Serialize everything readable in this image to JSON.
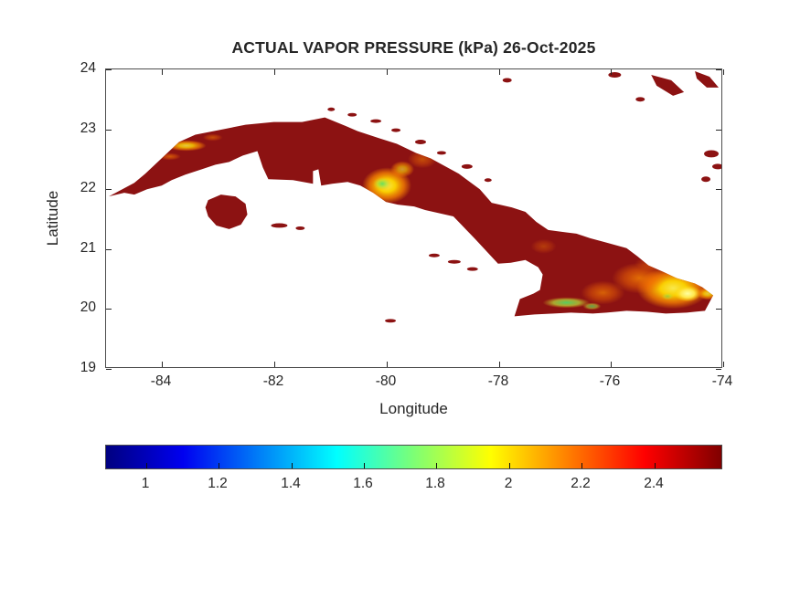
{
  "chart_data": {
    "type": "heatmap",
    "title": "ACTUAL VAPOR PRESSURE (kPa) 26-Oct-2025",
    "xlabel": "Longitude",
    "ylabel": "Latitude",
    "region": "Cuba and nearby islands",
    "xlim": [
      -85,
      -74
    ],
    "ylim": [
      19,
      24
    ],
    "x_ticks": [
      -84,
      -82,
      -80,
      -78,
      -76,
      -74
    ],
    "x_tick_labels": [
      "-84",
      "-82",
      "-80",
      "-78",
      "-76",
      "-74"
    ],
    "y_ticks": [
      24,
      23,
      22,
      21,
      20,
      19
    ],
    "y_tick_labels": [
      "24",
      "23",
      "22",
      "21",
      "20",
      "19"
    ],
    "grid": false,
    "colormap": "jet",
    "colorbar": {
      "orientation": "horizontal",
      "position": "below x-axis",
      "range": [
        0.89,
        2.59
      ],
      "ticks": [
        1,
        1.2,
        1.4,
        1.6,
        1.8,
        2,
        2.2,
        2.4
      ],
      "tick_labels": [
        "1",
        "1.2",
        "1.4",
        "1.6",
        "1.8",
        "2",
        "2.2",
        "2.4"
      ]
    },
    "colors": {
      "map_base": "#8c1212",
      "hotspot_yellow": "#ffd900",
      "hotspot_orange": "#ff8c00",
      "hotspot_green": "#4ee06a",
      "axis": "#4d4d4d",
      "text": "#262626",
      "background": "#ffffff"
    },
    "regions": [
      {
        "area": "Most of Cuba (lowlands, dark red)",
        "approx_value_kPa": 2.5
      },
      {
        "area": "Central mountains near lon -80.1, lat 22.1 (yellow/green patch)",
        "approx_value_kPa": 1.8
      },
      {
        "area": "Western uplands near lon -83.7, lat 22.65 (orange-yellow streaks)",
        "approx_value_kPa": 2.1
      },
      {
        "area": "Eastern mountains lon -76.5 to -74.3, lat 19.9-20.9 (large yellow-orange zone)",
        "approx_value_kPa": 2.0
      },
      {
        "area": "South-coast strip near lon -76.8, lat 20.1 (green streak)",
        "approx_value_kPa": 1.6
      }
    ]
  }
}
